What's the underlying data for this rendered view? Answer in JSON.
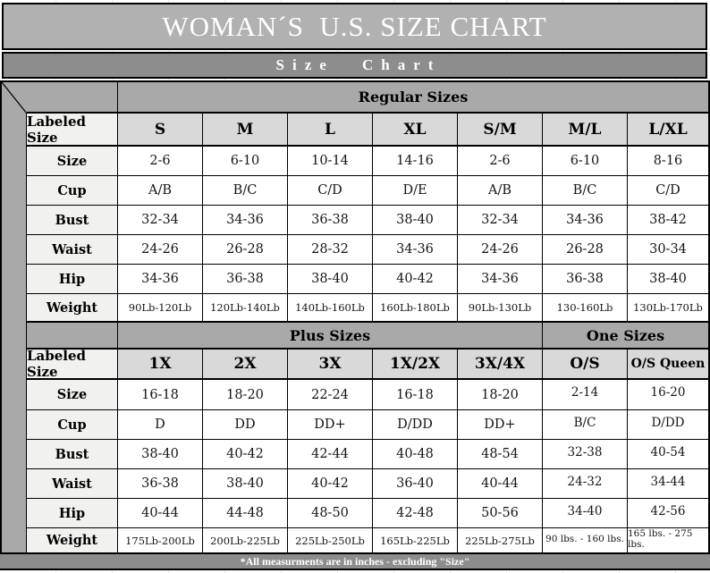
{
  "page": {
    "title": "WOMAN´S  U.S. SIZE CHART",
    "subtitle": "Size Chart",
    "footer_note": "*All measurments are in inches - excluding \"Size\""
  },
  "colors": {
    "banner_bg": "#b1b1b1",
    "subtitle_bg": "#8d8d8d",
    "section_bg": "#a9a9a9",
    "column_header_bg": "#d9d9d9",
    "row_label_bg": "#f1f1ef",
    "cell_bg": "#ffffff",
    "footer_bg": "#8d8d8d",
    "banner_text": "#ffffff",
    "border": "#000000"
  },
  "table": {
    "header_row_label": "Labeled Size",
    "sections": [
      {
        "bands": [
          {
            "label": "Regular Sizes",
            "span": 7
          }
        ],
        "columns": [
          "S",
          "M",
          "L",
          "XL",
          "S/M",
          "M/L",
          "L/XL"
        ],
        "rows": [
          {
            "label": "Size",
            "values": [
              "2-6",
              "6-10",
              "10-14",
              "14-16",
              "2-6",
              "6-10",
              "8-16"
            ]
          },
          {
            "label": "Cup",
            "values": [
              "A/B",
              "B/C",
              "C/D",
              "D/E",
              "A/B",
              "B/C",
              "C/D"
            ]
          },
          {
            "label": "Bust",
            "values": [
              "32-34",
              "34-36",
              "36-38",
              "38-40",
              "32-34",
              "34-36",
              "38-42"
            ]
          },
          {
            "label": "Waist",
            "values": [
              "24-26",
              "26-28",
              "28-32",
              "34-36",
              "24-26",
              "26-28",
              "30-34"
            ]
          },
          {
            "label": "Hip",
            "values": [
              "34-36",
              "36-38",
              "38-40",
              "40-42",
              "34-36",
              "36-38",
              "38-40"
            ]
          },
          {
            "label": "Weight",
            "values": [
              "90Lb-120Lb",
              "120Lb-140Lb",
              "140Lb-160Lb",
              "160Lb-180Lb",
              "90Lb-130Lb",
              "130-160Lb",
              "130Lb-170Lb"
            ],
            "small_text": true
          }
        ]
      },
      {
        "bands": [
          {
            "label": "Plus Sizes",
            "span": 5
          },
          {
            "label": "One Sizes",
            "span": 2
          }
        ],
        "columns": [
          "1X",
          "2X",
          "3X",
          "1X/2X",
          "3X/4X",
          "O/S",
          "O/S Queen"
        ],
        "onesize_col_start": 5,
        "rows": [
          {
            "label": "Size",
            "values": [
              "16-18",
              "18-20",
              "22-24",
              "16-18",
              "18-20",
              "2-14",
              "16-20"
            ]
          },
          {
            "label": "Cup",
            "values": [
              "D",
              "DD",
              "DD+",
              "D/DD",
              "DD+",
              "B/C",
              "D/DD"
            ]
          },
          {
            "label": "Bust",
            "values": [
              "38-40",
              "40-42",
              "42-44",
              "40-48",
              "48-54",
              "32-38",
              "40-54"
            ]
          },
          {
            "label": "Waist",
            "values": [
              "36-38",
              "38-40",
              "40-42",
              "36-40",
              "40-44",
              "24-32",
              "34-44"
            ]
          },
          {
            "label": "Hip",
            "values": [
              "40-44",
              "44-48",
              "48-50",
              "42-48",
              "50-56",
              "34-40",
              "42-56"
            ]
          },
          {
            "label": "Weight",
            "values": [
              "175Lb-200Lb",
              "200Lb-225Lb",
              "225Lb-250Lb",
              "165Lb-225Lb",
              "225Lb-275Lb",
              "90 lbs. - 160 lbs.",
              "165 lbs. - 275 lbs."
            ],
            "small_text": true
          }
        ]
      }
    ]
  }
}
